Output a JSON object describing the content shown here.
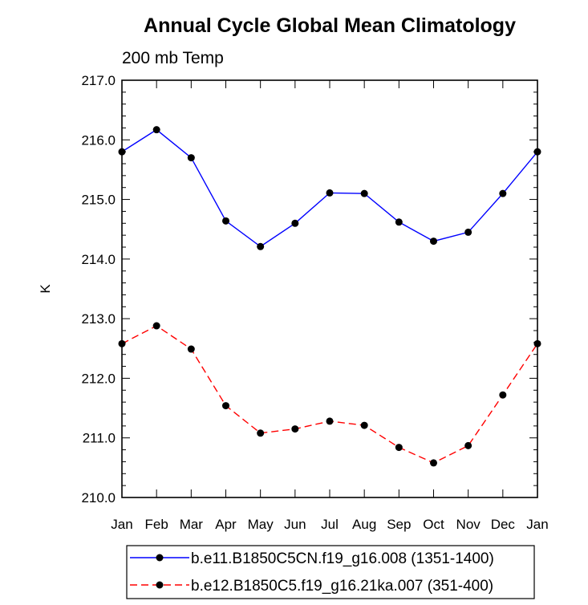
{
  "chart_data": {
    "type": "line",
    "title": "Annual Cycle Global Mean Climatology",
    "subtitle": "200 mb Temp",
    "ylabel": "K",
    "xlabel": "",
    "categories": [
      "Jan",
      "Feb",
      "Mar",
      "Apr",
      "May",
      "Jun",
      "Jul",
      "Aug",
      "Sep",
      "Oct",
      "Nov",
      "Dec",
      "Jan"
    ],
    "ylim": [
      210.0,
      217.0
    ],
    "yticks": [
      "210.0",
      "211.0",
      "212.0",
      "213.0",
      "214.0",
      "215.0",
      "216.0",
      "217.0"
    ],
    "grid": false,
    "legend_position": "bottom",
    "series": [
      {
        "name": "b.e11.B1850C5CN.f19_g16.008 (1351-1400)",
        "color": "#0000ff",
        "dash": "solid",
        "values": [
          215.8,
          216.17,
          215.7,
          214.64,
          214.21,
          214.6,
          215.11,
          215.1,
          214.62,
          214.3,
          214.45,
          215.1,
          215.8
        ]
      },
      {
        "name": "b.e12.B1850C5.f19_g16.21ka.007 (351-400)",
        "color": "#ff0000",
        "dash": "dashed",
        "values": [
          212.58,
          212.88,
          212.49,
          211.54,
          211.08,
          211.15,
          211.28,
          211.21,
          210.84,
          210.58,
          210.87,
          211.72,
          212.58
        ]
      }
    ]
  }
}
